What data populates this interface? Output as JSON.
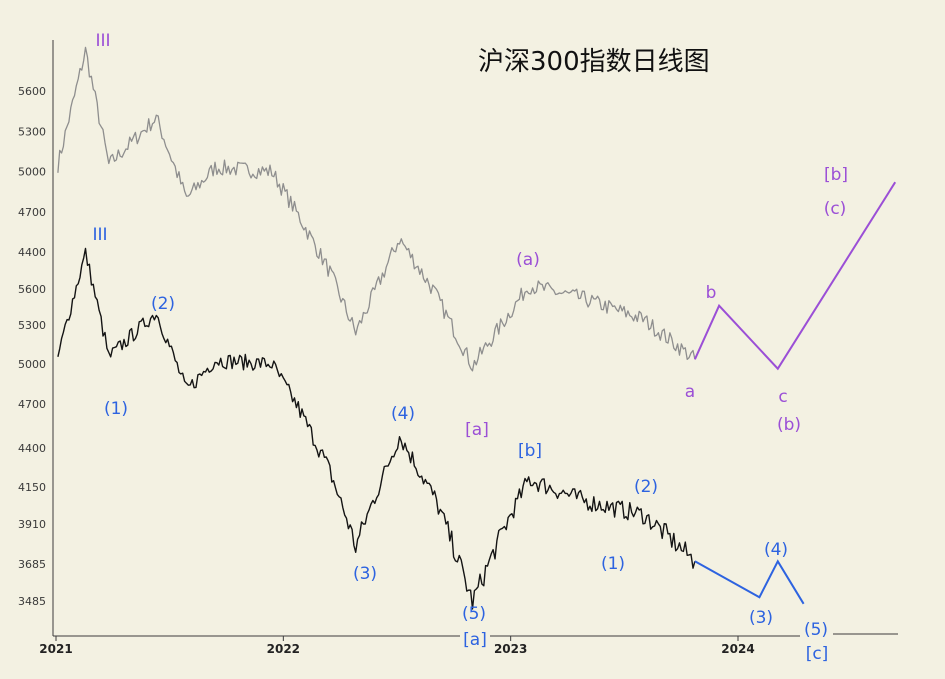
{
  "colors": {
    "background": "#f3f1e2",
    "upper_series": "#8e8e8e",
    "lower_series": "#141414",
    "purple_count": "#9b4fd6",
    "blue_count": "#2d63e0"
  },
  "chart_data": {
    "type": "line",
    "title": "沪深300指数日线图",
    "x_ticks": [
      "2021",
      "2022",
      "2023",
      "2024"
    ],
    "xlim": [
      "2021-01",
      "2024-09"
    ],
    "panels": [
      {
        "name": "upper",
        "style": "gray",
        "y_ticks": [
          5600,
          5300,
          5000,
          4700,
          4400
        ],
        "series": {
          "x": [
            "2021-01-04",
            "2021-02-18",
            "2021-03-25",
            "2021-06-10",
            "2021-07-28",
            "2021-09-13",
            "2021-12-13",
            "2022-01-28",
            "2022-03-15",
            "2022-04-26",
            "2022-07-05",
            "2022-08-31",
            "2022-10-31",
            "2023-01-30",
            "2023-04-28",
            "2023-07-31",
            "2023-10-23"
          ],
          "values": [
            5050,
            5900,
            5050,
            5400,
            4800,
            5030,
            5000,
            4650,
            4250,
            3800,
            4500,
            4100,
            3550,
            4150,
            4050,
            3900,
            3600
          ]
        },
        "wave_projection": [
          {
            "x": "2023-10-23",
            "y": 3600,
            "label": "a"
          },
          {
            "x": "2023-12-01",
            "y": 4000,
            "label": "b"
          },
          {
            "x": "2024-03-04",
            "y": 3530,
            "label": "c"
          },
          {
            "x": "2024-09-10",
            "y": 4920,
            "label": ""
          }
        ],
        "wave_labels": [
          "III",
          "[a]",
          "(a)",
          "a",
          "b",
          "c",
          "(b)",
          "(c)",
          "[b]"
        ]
      },
      {
        "name": "lower",
        "style": "black",
        "y_ticks": [
          5600,
          5300,
          5000,
          4700,
          4400,
          4150,
          3910,
          3685,
          3485
        ],
        "series": {
          "x": [
            "2021-01-04",
            "2021-02-18",
            "2021-03-25",
            "2021-06-10",
            "2021-07-28",
            "2021-09-13",
            "2021-12-13",
            "2022-01-28",
            "2022-03-15",
            "2022-04-26",
            "2022-07-05",
            "2022-08-31",
            "2022-10-31",
            "2023-01-30",
            "2023-04-28",
            "2023-07-31",
            "2023-10-23"
          ],
          "values": [
            5050,
            5900,
            5050,
            5400,
            4800,
            5030,
            5000,
            4650,
            4250,
            3780,
            4480,
            4080,
            3480,
            4200,
            4060,
            3970,
            3700
          ]
        },
        "wave_projection": [
          {
            "x": "2023-10-23",
            "y": 3700,
            "label": ""
          },
          {
            "x": "2024-02-05",
            "y": 3505,
            "label": "(3)"
          },
          {
            "x": "2024-03-04",
            "y": 3700,
            "label": "(4)"
          },
          {
            "x": "2024-04-15",
            "y": 3470,
            "label": "(5)"
          }
        ],
        "wave_labels": [
          "III",
          "(1)",
          "(2)",
          "(3)",
          "(4)",
          "(5)",
          "[a]",
          "[b]",
          "(1)",
          "(2)",
          "(3)",
          "(4)",
          "(5)",
          "[c]"
        ]
      }
    ]
  }
}
